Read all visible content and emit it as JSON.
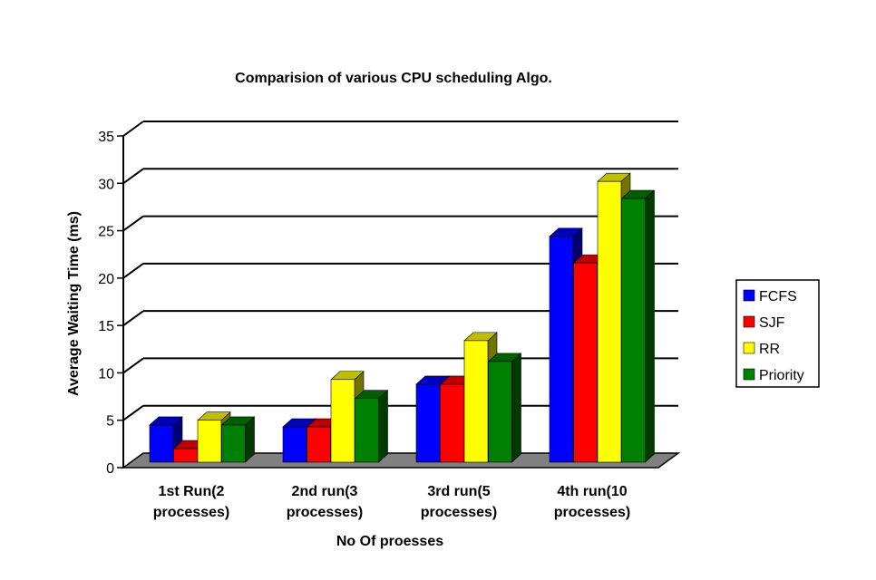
{
  "chart_data": {
    "type": "bar",
    "title": "Comparision of various CPU scheduling Algo.",
    "xlabel": "No Of proesses",
    "ylabel": "Average Waiting Time (ms)",
    "ylim": [
      0,
      35
    ],
    "yticks": [
      0,
      5,
      10,
      15,
      20,
      25,
      30,
      35
    ],
    "grid": true,
    "legend_position": "right",
    "categories": [
      [
        "1st Run(2",
        "processes)"
      ],
      [
        "2nd run(3",
        "processes)"
      ],
      [
        "3rd run(5",
        "processes)"
      ],
      [
        "4th run(10",
        "processes)"
      ]
    ],
    "series": [
      {
        "name": "FCFS",
        "color": "#0000ff",
        "values": [
          4.5,
          4.3,
          8.8,
          24.4
        ]
      },
      {
        "name": "SJF",
        "color": "#ff0000",
        "values": [
          2.0,
          4.3,
          8.8,
          21.6
        ]
      },
      {
        "name": "RR",
        "color": "#ffff00",
        "values": [
          5.0,
          9.3,
          13.4,
          30.2
        ]
      },
      {
        "name": "Priority",
        "color": "#008000",
        "values": [
          4.5,
          7.3,
          11.2,
          28.4
        ]
      }
    ]
  }
}
